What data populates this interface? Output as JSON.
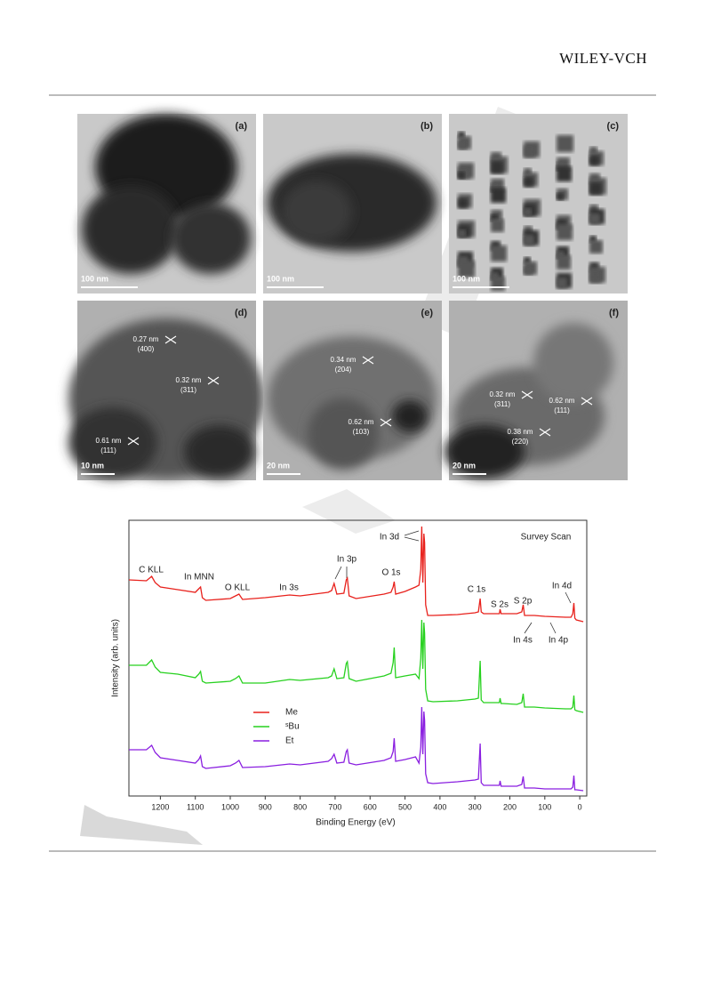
{
  "header": {
    "logo": "WILEY-VCH"
  },
  "tem_panels": [
    {
      "label": "(a)",
      "scale_bar": "100 nm",
      "lattice": []
    },
    {
      "label": "(b)",
      "scale_bar": "100 nm",
      "lattice": []
    },
    {
      "label": "(c)",
      "scale_bar": "100 nm",
      "lattice": []
    },
    {
      "label": "(d)",
      "scale_bar": "10 nm",
      "lattice": [
        {
          "d": "0.27 nm",
          "hkl": "(400)"
        },
        {
          "d": "0.32 nm",
          "hkl": "(311)"
        },
        {
          "d": "0.61 nm",
          "hkl": "(111)"
        }
      ]
    },
    {
      "label": "(e)",
      "scale_bar": "20 nm",
      "lattice": [
        {
          "d": "0.34 nm",
          "hkl": "(204)"
        },
        {
          "d": "0.62 nm",
          "hkl": "(103)"
        }
      ]
    },
    {
      "label": "(f)",
      "scale_bar": "20 nm",
      "lattice": [
        {
          "d": "0.32 nm",
          "hkl": "(311)"
        },
        {
          "d": "0.62 nm",
          "hkl": "(111)"
        },
        {
          "d": "0.38 nm",
          "hkl": "(220)"
        }
      ]
    }
  ],
  "chart_data": {
    "type": "line",
    "x_label": "Binding Energy (eV)",
    "y_label": "Intensity (arb. units)",
    "xlim": [
      1290,
      -20
    ],
    "xticks": [
      1200,
      1100,
      1000,
      900,
      800,
      700,
      600,
      500,
      400,
      300,
      200,
      100,
      0
    ],
    "ylim": [
      0,
      310
    ],
    "annotations": [
      "C KLL",
      "In MNN",
      "O KLL",
      "In 3s",
      "In 3p",
      "O 1s",
      "In 3d",
      "Survey Scan",
      "C 1s",
      "S 2s",
      "S 2p",
      "In 4d",
      "In 4s",
      "In 4p"
    ],
    "x": [
      1290,
      1240,
      1225,
      1215,
      1200,
      1150,
      1100,
      1090,
      1085,
      1080,
      1070,
      1000,
      985,
      975,
      965,
      900,
      830,
      800,
      720,
      710,
      703,
      695,
      675,
      668,
      665,
      660,
      640,
      560,
      540,
      534,
      531,
      527,
      500,
      470,
      460,
      455,
      452,
      449,
      446,
      444,
      441,
      435,
      420,
      350,
      300,
      290,
      285,
      282,
      275,
      240,
      230,
      228,
      225,
      220,
      180,
      166,
      162,
      158,
      130,
      100,
      40,
      25,
      20,
      17,
      14,
      10,
      -10
    ],
    "series": [
      {
        "name": "Me",
        "color": "#e8211c",
        "values": [
          243,
          242,
          247,
          240,
          235,
          232,
          229,
          233,
          235,
          223,
          220,
          222,
          225,
          227,
          221,
          223,
          226,
          225,
          229,
          231,
          239,
          227,
          228,
          243,
          245,
          225,
          222,
          227,
          229,
          235,
          241,
          227,
          230,
          235,
          237,
          255,
          303,
          240,
          295,
          285,
          215,
          203,
          203,
          204,
          206,
          207,
          222,
          207,
          205,
          205,
          205,
          210,
          205,
          205,
          205,
          207,
          215,
          203,
          203,
          202,
          201,
          201,
          205,
          217,
          200,
          198,
          196
        ]
      },
      {
        "name": "ˢBu",
        "color": "#27d11f",
        "values": [
          147,
          147,
          153,
          145,
          139,
          137,
          133,
          137,
          140,
          129,
          127,
          129,
          132,
          135,
          127,
          127,
          131,
          130,
          133,
          135,
          143,
          132,
          133,
          149,
          151,
          132,
          129,
          135,
          138,
          150,
          167,
          133,
          135,
          137,
          132,
          155,
          198,
          143,
          195,
          183,
          120,
          107,
          106,
          107,
          109,
          110,
          152,
          108,
          105,
          105,
          105,
          110,
          104,
          104,
          103,
          105,
          115,
          100,
          100,
          99,
          98,
          98,
          100,
          113,
          97,
          96,
          94
        ]
      },
      {
        "name": "Et",
        "color": "#8a1fe0",
        "values": [
          52,
          52,
          57,
          49,
          43,
          40,
          37,
          41,
          45,
          33,
          31,
          34,
          37,
          40,
          32,
          33,
          36,
          35,
          39,
          42,
          47,
          37,
          38,
          50,
          52,
          37,
          35,
          40,
          43,
          50,
          65,
          39,
          41,
          44,
          37,
          55,
          100,
          47,
          95,
          85,
          25,
          15,
          14,
          16,
          18,
          19,
          59,
          15,
          12,
          12,
          12,
          17,
          11,
          11,
          11,
          13,
          22,
          9,
          9,
          8,
          8,
          8,
          10,
          23,
          7,
          7,
          6
        ]
      }
    ]
  }
}
